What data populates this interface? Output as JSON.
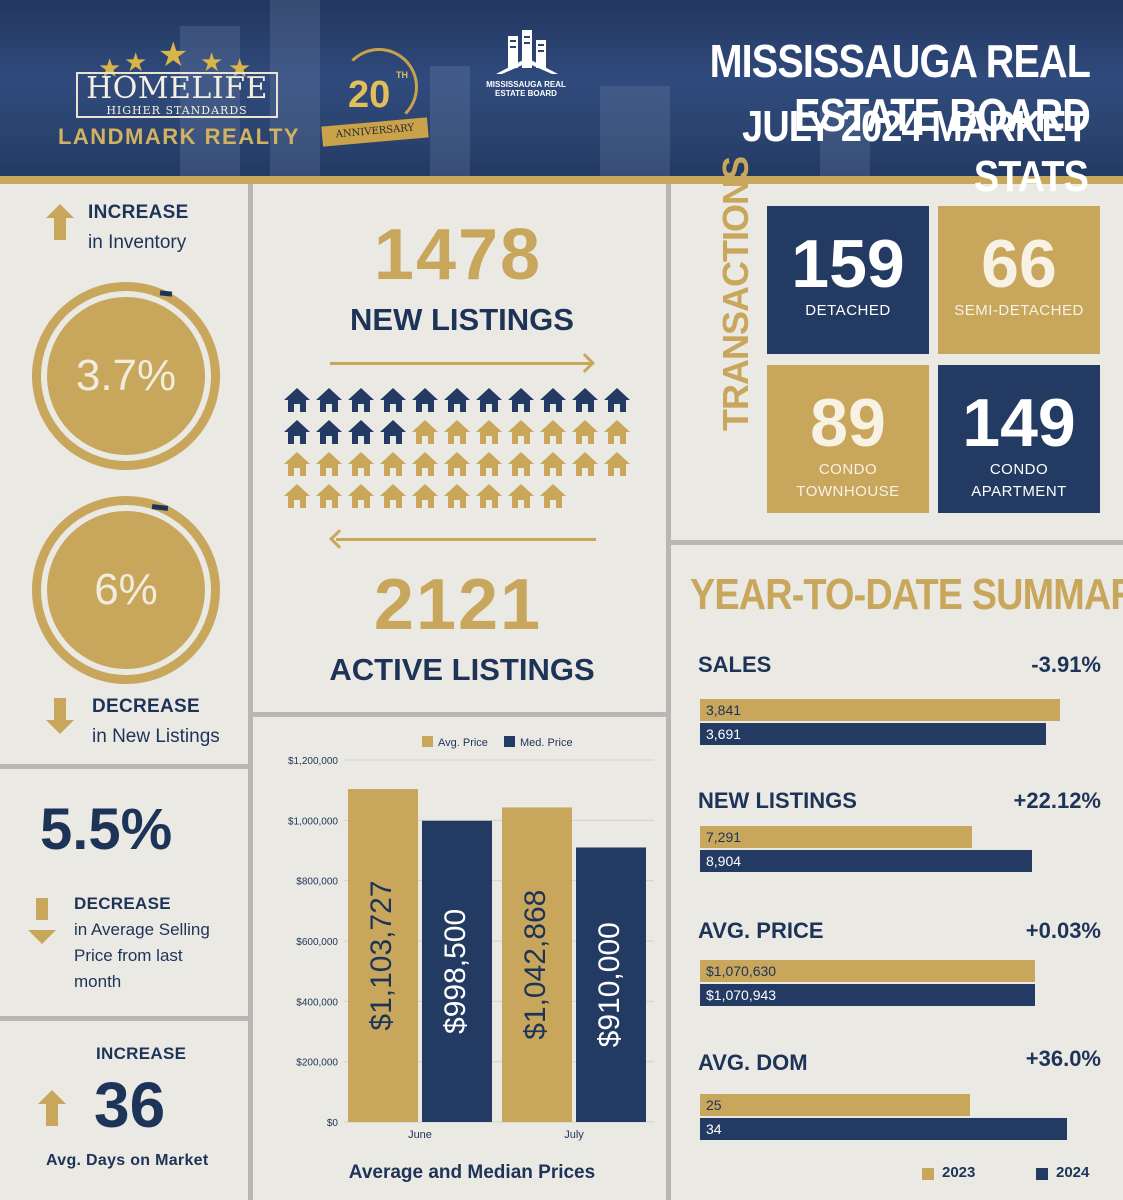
{
  "header": {
    "brand_name": "HOMELIFE",
    "brand_tagline": "HIGHER STANDARDS",
    "brand_office": "LANDMARK REALTY",
    "anniversary_number": "20",
    "anniversary_suffix": "TH",
    "anniversary_label": "ANNIVERSARY",
    "board_logo_text": "MISSISSAUGA REAL ESTATE BOARD",
    "title": "MISSISSAUGA REAL ESTATE BOARD",
    "subtitle": "JULY 2024 MARKET STATS",
    "stars": 5
  },
  "left": {
    "inventory": {
      "direction": "INCREASE",
      "label": "in Inventory",
      "value": "3.7%"
    },
    "new_listings": {
      "direction": "DECREASE",
      "label": "in New Listings",
      "value": "6%"
    },
    "avg_price": {
      "value": "5.5%",
      "direction": "DECREASE",
      "lines": [
        "in Average Selling",
        "Price from last",
        "month"
      ]
    },
    "dom": {
      "direction": "INCREASE",
      "value": "36",
      "label": "Avg. Days on Market"
    }
  },
  "center": {
    "new_listings_value": "1478",
    "new_listings_label": "NEW LISTINGS",
    "active_listings_value": "2121",
    "active_listings_label": "ACTIVE LISTINGS",
    "houses": {
      "total": 42,
      "navy_count": 15,
      "per_row": 11
    }
  },
  "transactions": {
    "label": "TRANSACTIONS",
    "tiles": [
      {
        "value": "159",
        "label": [
          "DETACHED"
        ],
        "color": "navy"
      },
      {
        "value": "66",
        "label": [
          "SEMI-DETACHED"
        ],
        "color": "gold"
      },
      {
        "value": "89",
        "label": [
          "CONDO",
          "TOWNHOUSE"
        ],
        "color": "gold"
      },
      {
        "value": "149",
        "label": [
          "CONDO",
          "APARTMENT"
        ],
        "color": "navy"
      }
    ]
  },
  "ytd": {
    "title": "YEAR-TO-DATE SUMMARY",
    "rows": [
      {
        "label": "SALES",
        "change": "-3.91%",
        "v2023": "3,841",
        "v2024": "3,691",
        "n2023": 3841,
        "n2024": 3691
      },
      {
        "label": "NEW LISTINGS",
        "change": "+22.12%",
        "v2023": "7,291",
        "v2024": "8,904",
        "n2023": 7291,
        "n2024": 8904
      },
      {
        "label": "AVG. PRICE",
        "change": "+0.03%",
        "v2023": "$1,070,630",
        "v2024": "$1,070,943",
        "n2023": 1070630,
        "n2024": 1070943
      },
      {
        "label": "AVG. DOM",
        "change": "+36.0%",
        "v2023": "25",
        "v2024": "34",
        "n2023": 25,
        "n2024": 34
      }
    ],
    "legend": [
      "2023",
      "2024"
    ]
  },
  "colors": {
    "navy": "#233a63",
    "gold": "#c8a75c",
    "background": "#ebe9e4"
  },
  "chart_data": [
    {
      "type": "bar",
      "title": "Average and Median Prices",
      "categories": [
        "June",
        "July"
      ],
      "series": [
        {
          "name": "Avg. Price",
          "values": [
            1103727,
            1042868
          ],
          "labels": [
            "$1,103,727",
            "$1,042,868"
          ]
        },
        {
          "name": "Med. Price",
          "values": [
            998500,
            910000
          ],
          "labels": [
            "$998,500",
            "$910,000"
          ]
        }
      ],
      "ylim": [
        0,
        1200000
      ],
      "yticks": [
        "$0",
        "$200,000",
        "$400,000",
        "$600,000",
        "$800,000",
        "$1,000,000",
        "$1,200,000"
      ],
      "grid": true,
      "legend": "top"
    }
  ]
}
